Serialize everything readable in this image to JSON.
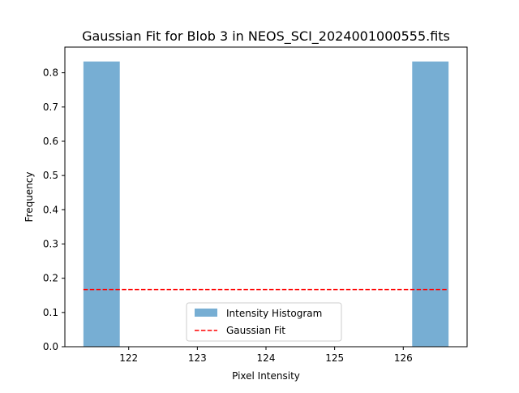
{
  "chart_data": {
    "type": "bar",
    "title": "Gaussian Fit for Blob 3 in NEOS_SCI_2024001000555.fits",
    "xlabel": "Pixel Intensity",
    "ylabel": "Frequency",
    "xlim": [
      121.07,
      126.93
    ],
    "ylim": [
      0,
      0.875
    ],
    "xticks": [
      122,
      123,
      124,
      125,
      126
    ],
    "yticks": [
      0.0,
      0.1,
      0.2,
      0.3,
      0.4,
      0.5,
      0.6,
      0.7,
      0.8
    ],
    "grid": false,
    "legend_position": "lower center",
    "histogram": {
      "name": "Intensity Histogram",
      "color": "#77aed3",
      "bins": [
        {
          "x0": 121.34,
          "x1": 121.87,
          "value": 0.833
        },
        {
          "x0": 121.87,
          "x1": 122.41,
          "value": 0.0
        },
        {
          "x0": 122.41,
          "x1": 122.94,
          "value": 0.0
        },
        {
          "x0": 122.94,
          "x1": 123.47,
          "value": 0.0
        },
        {
          "x0": 123.47,
          "x1": 124.0,
          "value": 0.0
        },
        {
          "x0": 124.0,
          "x1": 124.53,
          "value": 0.0
        },
        {
          "x0": 124.53,
          "x1": 125.06,
          "value": 0.0
        },
        {
          "x0": 125.06,
          "x1": 125.59,
          "value": 0.0
        },
        {
          "x0": 125.59,
          "x1": 126.13,
          "value": 0.0
        },
        {
          "x0": 126.13,
          "x1": 126.66,
          "value": 0.833
        }
      ]
    },
    "fit": {
      "name": "Gaussian Fit",
      "color": "#ff0000",
      "style": "dashed",
      "x": [
        121.34,
        126.66
      ],
      "y": [
        0.167,
        0.167
      ]
    }
  }
}
